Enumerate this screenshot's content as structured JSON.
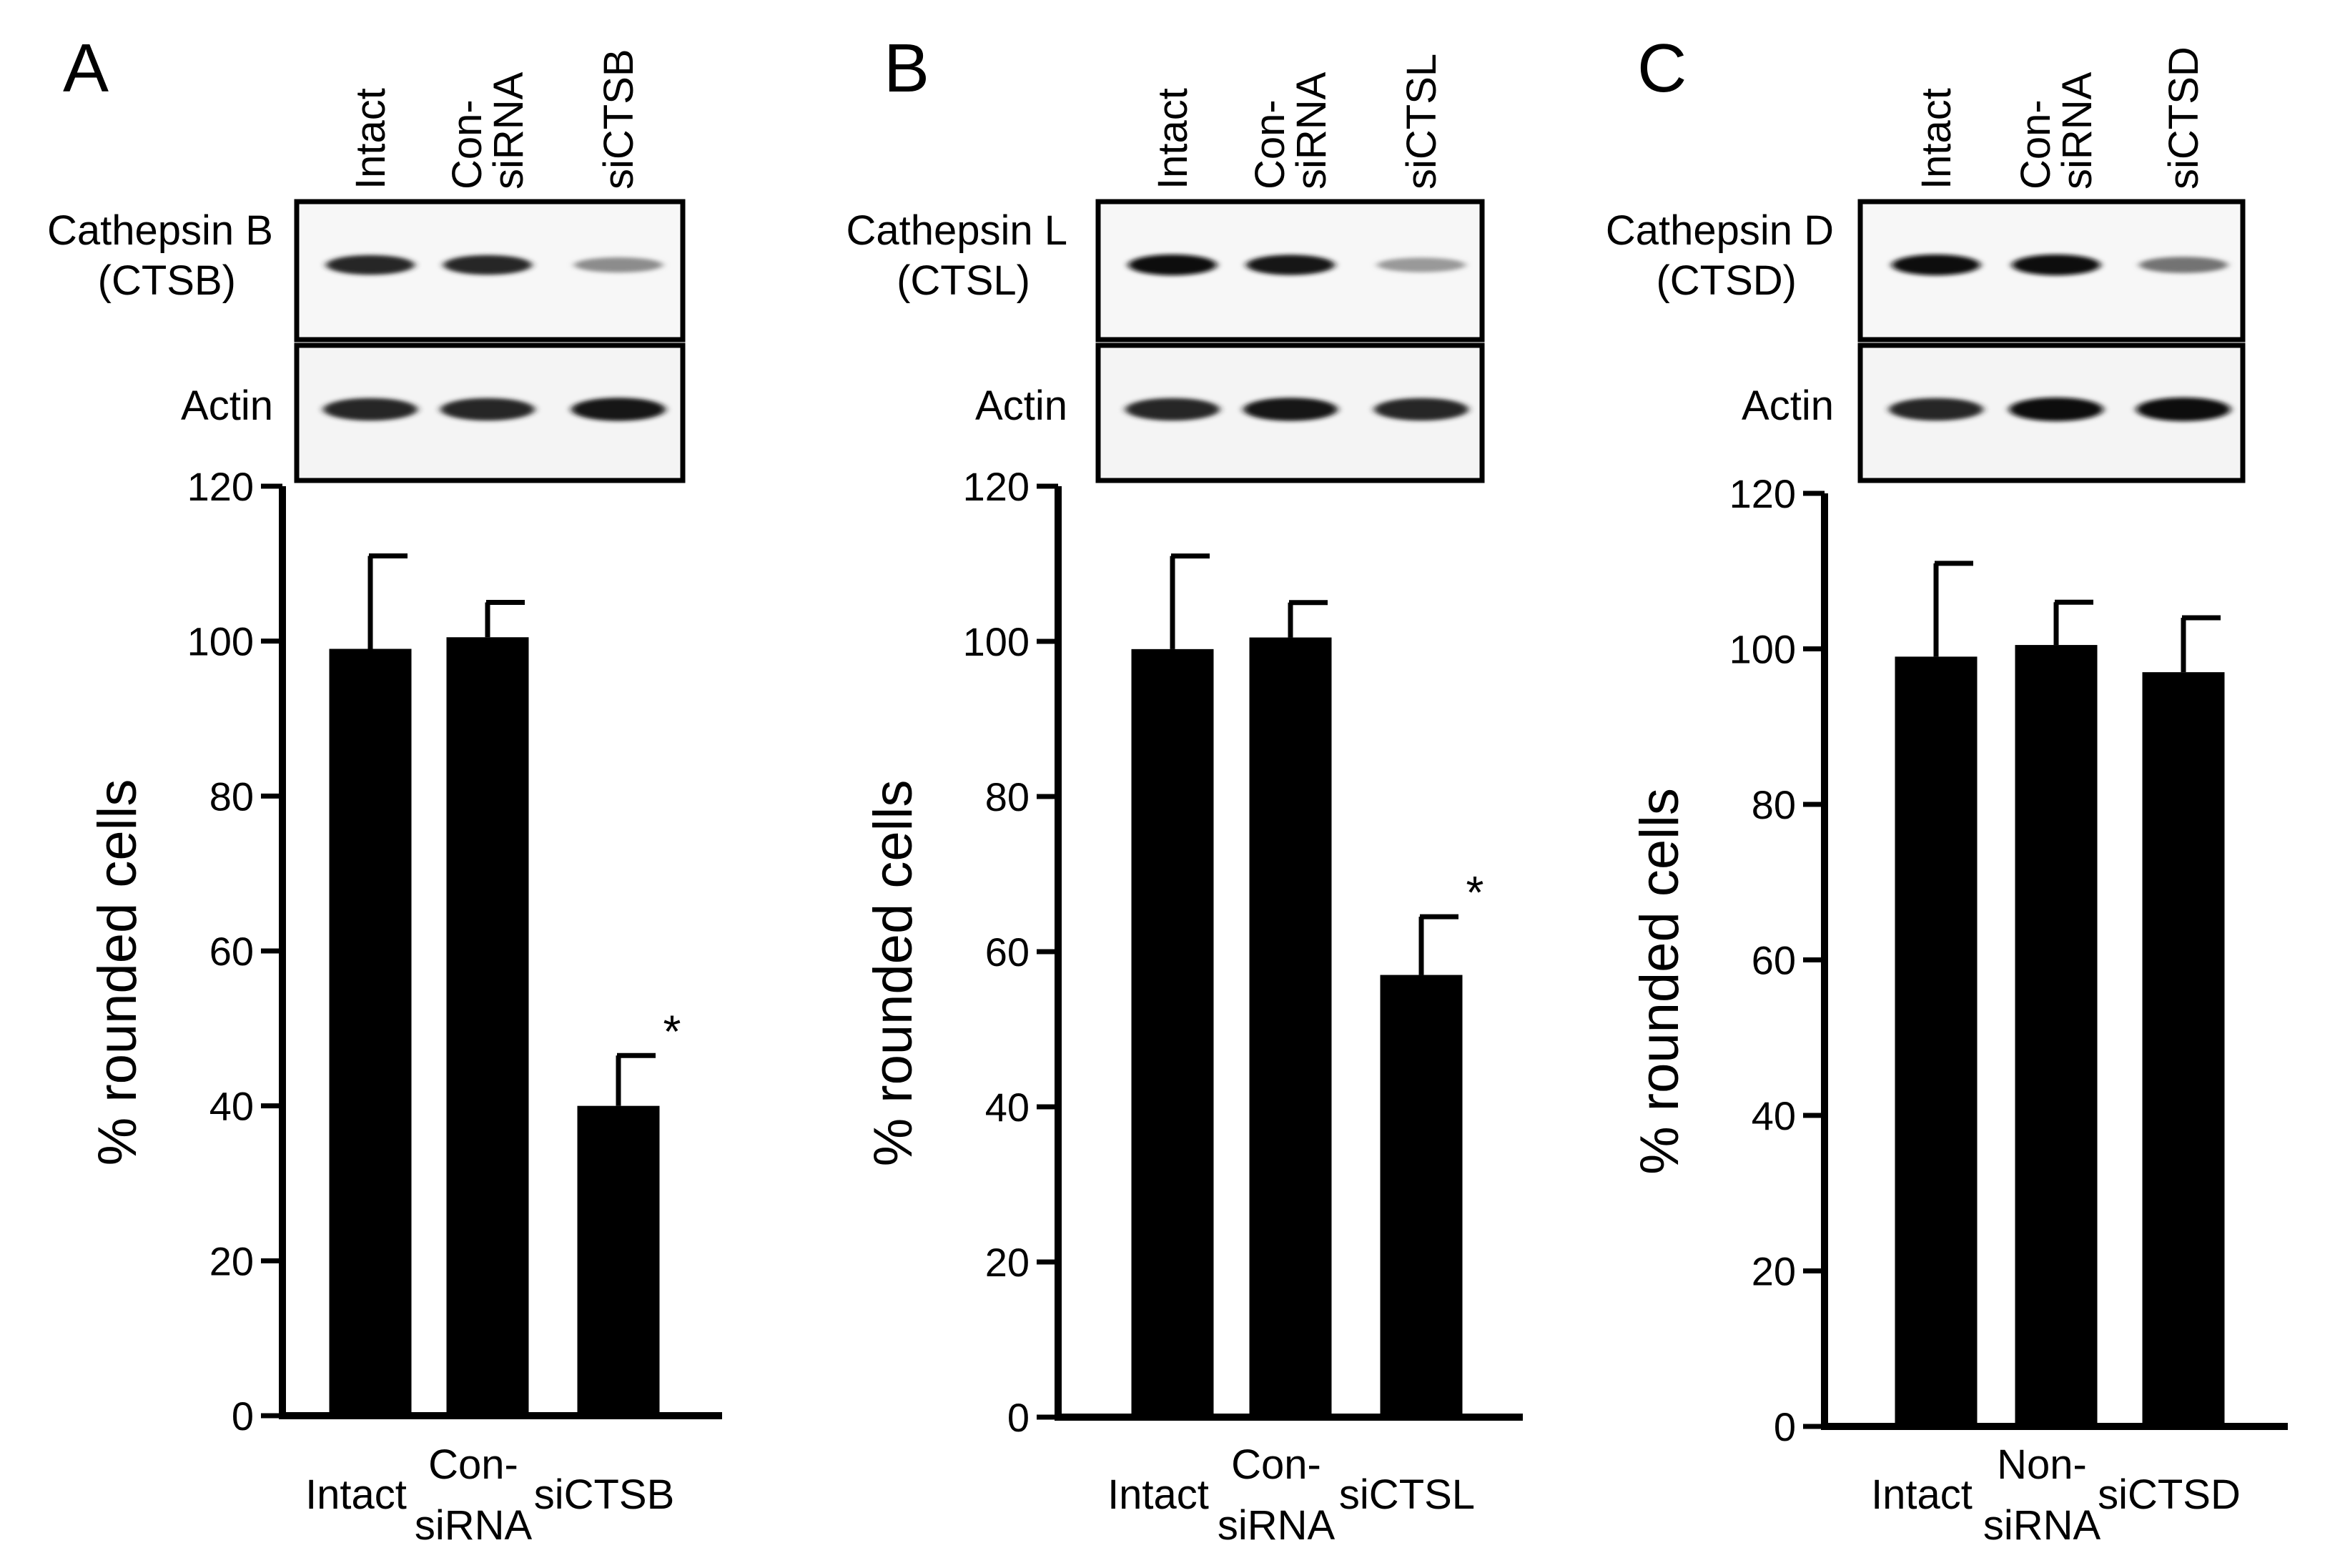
{
  "figure": {
    "panels": [
      {
        "letter": "A",
        "blot": {
          "lane_labels": [
            [
              "Intact"
            ],
            [
              "Con-",
              "siRNA"
            ],
            [
              "siCTSB"
            ]
          ],
          "target_label": [
            "Cathepsin  B",
            "(CTSB)"
          ],
          "loading_label": "Actin",
          "target_intensity": [
            0.85,
            0.85,
            0.45
          ],
          "loading_intensity": [
            0.85,
            0.85,
            0.9
          ]
        },
        "chart_data": {
          "type": "bar",
          "categories": [
            [
              "Intact"
            ],
            [
              "Con-",
              "siRNA"
            ],
            [
              "siCTSB"
            ]
          ],
          "values": [
            99,
            100.5,
            40
          ],
          "errors": [
            12,
            4.5,
            6.5
          ],
          "significance": [
            "",
            "",
            "*"
          ],
          "ylabel": "% rounded cells",
          "ylim": [
            0,
            120
          ],
          "yticks": [
            "0",
            "20",
            "40",
            "60",
            "80",
            "100",
            "120"
          ],
          "bar_color": "#000000"
        }
      },
      {
        "letter": "B",
        "blot": {
          "lane_labels": [
            [
              "Intact"
            ],
            [
              "Con-",
              "siRNA"
            ],
            [
              "siCTSL"
            ]
          ],
          "target_label": [
            "Cathepsin  L",
            "(CTSL)"
          ],
          "loading_label": "Actin",
          "target_intensity": [
            0.95,
            0.9,
            0.4
          ],
          "loading_intensity": [
            0.85,
            0.9,
            0.85
          ]
        },
        "chart_data": {
          "type": "bar",
          "categories": [
            [
              "Intact"
            ],
            [
              "Con-",
              "siRNA"
            ],
            [
              "siCTSL"
            ]
          ],
          "values": [
            99,
            100.5,
            57
          ],
          "errors": [
            12,
            4.5,
            7.5
          ],
          "significance": [
            "",
            "",
            "*"
          ],
          "ylabel": "% rounded cells",
          "ylim": [
            0,
            120
          ],
          "yticks": [
            "0",
            "20",
            "40",
            "60",
            "80",
            "100",
            "120"
          ],
          "bar_color": "#000000"
        }
      },
      {
        "letter": "C",
        "blot": {
          "lane_labels": [
            [
              "Intact"
            ],
            [
              "Con-",
              "siRNA"
            ],
            [
              "siCTSD"
            ]
          ],
          "target_label": [
            "Cathepsin  D",
            "(CTSD)"
          ],
          "loading_label": "Actin",
          "target_intensity": [
            0.95,
            0.95,
            0.55
          ],
          "loading_intensity": [
            0.85,
            0.95,
            0.95
          ]
        },
        "chart_data": {
          "type": "bar",
          "categories": [
            [
              "Intact"
            ],
            [
              "Non-",
              "siRNA"
            ],
            [
              "siCTSD"
            ]
          ],
          "values": [
            99,
            100.5,
            97
          ],
          "errors": [
            12,
            5.5,
            7
          ],
          "significance": [
            "",
            "",
            ""
          ],
          "ylabel": "% rounded cells",
          "ylim": [
            0,
            120
          ],
          "yticks": [
            "0",
            "20",
            "40",
            "60",
            "80",
            "100",
            "120"
          ],
          "bar_color": "#000000"
        }
      }
    ]
  }
}
